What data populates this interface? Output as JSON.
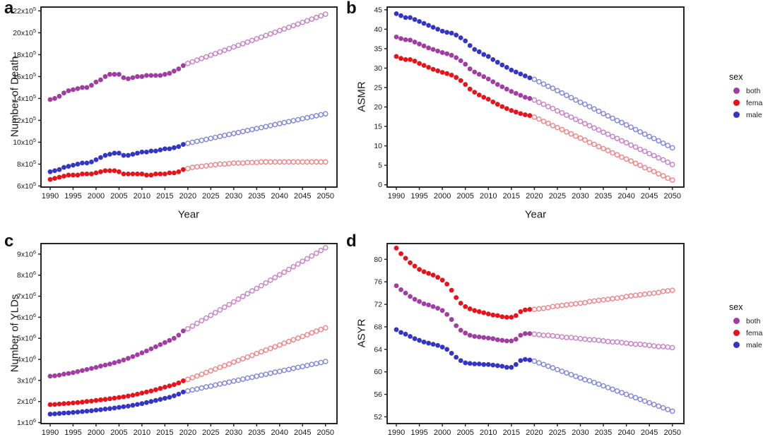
{
  "figure": {
    "panels": [
      {
        "letter": "a"
      },
      {
        "letter": "b"
      },
      {
        "letter": "c"
      },
      {
        "letter": "d"
      }
    ],
    "legend": {
      "title": "sex",
      "items": [
        {
          "label": "both",
          "color": "#A03DA3"
        },
        {
          "label": "female",
          "color": "#E8121A"
        },
        {
          "label": "male",
          "color": "#3435C4"
        }
      ]
    },
    "colors": {
      "frame": "#262626",
      "tick_text": "#1a1a1a",
      "background": "#ffffff"
    }
  },
  "chart_data": [
    {
      "panel": "a",
      "type": "scatter",
      "ylabel": "Number of Death",
      "xlabel": "Year",
      "x_range": [
        1990,
        2050,
        1
      ],
      "observed_through": 2019,
      "xlim": [
        1988,
        2052.5
      ],
      "ylim": [
        5.9,
        22.35
      ],
      "x_ticks": [
        1990,
        1995,
        2000,
        2005,
        2010,
        2015,
        2020,
        2025,
        2030,
        2035,
        2040,
        2045,
        2050
      ],
      "y_ticks": [
        6,
        8,
        10,
        12,
        14,
        16,
        18,
        20,
        22
      ],
      "y_tick_exponent": 5,
      "unit": "1e5",
      "grid": false,
      "series": [
        {
          "name": "both",
          "color": "#A03DA3",
          "light": "#C77FC8",
          "values": [
            13.9,
            14.0,
            14.2,
            14.5,
            14.7,
            14.8,
            14.9,
            15.0,
            15.0,
            15.2,
            15.5,
            15.7,
            16.0,
            16.2,
            16.2,
            16.2,
            15.9,
            15.8,
            15.9,
            16.0,
            16.0,
            16.1,
            16.1,
            16.1,
            16.1,
            16.2,
            16.3,
            16.5,
            16.7,
            17.0,
            17.2,
            17.35,
            17.5,
            17.65,
            17.8,
            17.95,
            18.1,
            18.25,
            18.4,
            18.55,
            18.7,
            18.85,
            19.0,
            19.15,
            19.3,
            19.45,
            19.6,
            19.75,
            19.9,
            20.05,
            20.2,
            20.35,
            20.5,
            20.65,
            20.8,
            20.95,
            21.1,
            21.25,
            21.4,
            21.55,
            21.7
          ]
        },
        {
          "name": "female",
          "color": "#E8121A",
          "light": "#F28387",
          "values": [
            6.6,
            6.7,
            6.8,
            6.9,
            7.0,
            7.0,
            7.0,
            7.1,
            7.1,
            7.1,
            7.2,
            7.3,
            7.4,
            7.4,
            7.4,
            7.3,
            7.1,
            7.1,
            7.1,
            7.1,
            7.1,
            7.0,
            7.0,
            7.1,
            7.1,
            7.1,
            7.2,
            7.2,
            7.3,
            7.5,
            7.6,
            7.7,
            7.75,
            7.8,
            7.85,
            7.9,
            7.95,
            8.0,
            8.0,
            8.05,
            8.1,
            8.1,
            8.1,
            8.15,
            8.15,
            8.15,
            8.2,
            8.2,
            8.2,
            8.2,
            8.2,
            8.2,
            8.2,
            8.2,
            8.2,
            8.2,
            8.2,
            8.2,
            8.2,
            8.2,
            8.2
          ]
        },
        {
          "name": "male",
          "color": "#3435C4",
          "light": "#8184DE",
          "values": [
            7.3,
            7.4,
            7.5,
            7.7,
            7.8,
            7.9,
            8.0,
            8.1,
            8.1,
            8.2,
            8.4,
            8.6,
            8.8,
            8.9,
            9.0,
            9.0,
            8.8,
            8.8,
            8.9,
            9.0,
            9.1,
            9.1,
            9.2,
            9.2,
            9.3,
            9.4,
            9.4,
            9.5,
            9.6,
            9.8,
            9.9,
            9.99,
            10.08,
            10.17,
            10.26,
            10.35,
            10.44,
            10.53,
            10.62,
            10.71,
            10.8,
            10.89,
            10.98,
            11.07,
            11.16,
            11.25,
            11.34,
            11.43,
            11.52,
            11.61,
            11.7,
            11.79,
            11.88,
            11.97,
            12.06,
            12.15,
            12.24,
            12.33,
            12.42,
            12.51,
            12.6
          ]
        }
      ]
    },
    {
      "panel": "b",
      "type": "scatter",
      "ylabel": "ASMR",
      "xlabel": "Year",
      "x_range": [
        1990,
        2050,
        1
      ],
      "observed_through": 2019,
      "xlim": [
        1988,
        2052.5
      ],
      "ylim": [
        -0.6,
        45.7
      ],
      "x_ticks": [
        1990,
        1995,
        2000,
        2005,
        2010,
        2015,
        2020,
        2025,
        2030,
        2035,
        2040,
        2045,
        2050
      ],
      "y_ticks": [
        0,
        5,
        10,
        15,
        20,
        25,
        30,
        35,
        40,
        45
      ],
      "y_tick_exponent": null,
      "unit": "1",
      "grid": false,
      "series": [
        {
          "name": "both",
          "color": "#A03DA3",
          "light": "#C77FC8",
          "values": [
            38,
            37.6,
            37.3,
            37.2,
            36.7,
            36.2,
            35.7,
            35.2,
            34.8,
            34.4,
            34,
            33.7,
            33.3,
            32.7,
            31.9,
            31,
            29.8,
            29,
            28.4,
            27.8,
            27.2,
            26.5,
            25.8,
            25.2,
            24.6,
            24,
            23.5,
            23,
            22.5,
            22.2,
            21.8,
            21.2,
            20.7,
            20.1,
            19.6,
            19.0,
            18.5,
            17.9,
            17.4,
            16.8,
            16.3,
            15.7,
            15.2,
            14.6,
            14.1,
            13.5,
            13.0,
            12.4,
            11.9,
            11.3,
            10.8,
            10.2,
            9.7,
            9.1,
            8.6,
            8.0,
            7.5,
            6.9,
            6.4,
            5.8,
            5.2
          ]
        },
        {
          "name": "female",
          "color": "#E8121A",
          "light": "#F28387",
          "values": [
            33,
            32.5,
            32.2,
            32.2,
            31.8,
            31.2,
            30.7,
            30.2,
            29.7,
            29.3,
            28.9,
            28.6,
            28.2,
            27.6,
            26.8,
            25.8,
            24.6,
            23.8,
            23.1,
            22.5,
            22,
            21.3,
            20.7,
            20.1,
            19.6,
            19.1,
            18.7,
            18.3,
            18,
            17.8,
            17.4,
            16.9,
            16.3,
            15.8,
            15.2,
            14.7,
            14.2,
            13.6,
            13.1,
            12.5,
            12.0,
            11.5,
            10.9,
            10.4,
            9.8,
            9.3,
            8.8,
            8.2,
            7.7,
            7.1,
            6.6,
            6.1,
            5.5,
            5.0,
            4.4,
            3.9,
            3.4,
            2.8,
            2.3,
            1.7,
            1.2
          ]
        },
        {
          "name": "male",
          "color": "#3435C4",
          "light": "#8184DE",
          "values": [
            44,
            43.5,
            43,
            43,
            42.5,
            42,
            41.5,
            41,
            40.5,
            40,
            39.5,
            39.2,
            39,
            38.5,
            37.8,
            37,
            35.8,
            34.8,
            34.2,
            33.5,
            33,
            32.2,
            31.5,
            30.8,
            30.2,
            29.5,
            29,
            28.5,
            28,
            27.5,
            27.1,
            26.5,
            25.9,
            25.3,
            24.8,
            24.2,
            23.6,
            23.0,
            22.4,
            21.8,
            21.2,
            20.7,
            20.1,
            19.5,
            18.9,
            18.3,
            17.7,
            17.1,
            16.5,
            16.0,
            15.4,
            14.8,
            14.2,
            13.6,
            13.0,
            12.4,
            11.9,
            11.3,
            10.7,
            10.1,
            9.5
          ]
        }
      ]
    },
    {
      "panel": "c",
      "type": "scatter",
      "ylabel": "Number of YLDs",
      "xlabel": "",
      "x_range": [
        1990,
        2050,
        1
      ],
      "observed_through": 2019,
      "xlim": [
        1988,
        2052.5
      ],
      "ylim": [
        0.95,
        9.5
      ],
      "x_ticks": [
        1990,
        1995,
        2000,
        2005,
        2010,
        2015,
        2020,
        2025,
        2030,
        2035,
        2040,
        2045,
        2050
      ],
      "y_ticks": [
        1,
        2,
        3,
        4,
        5,
        6,
        7,
        8,
        9
      ],
      "y_tick_exponent": 6,
      "unit": "1e6",
      "grid": false,
      "series": [
        {
          "name": "both",
          "color": "#A03DA3",
          "light": "#C77FC8",
          "values": [
            3.2,
            3.22,
            3.25,
            3.3,
            3.33,
            3.37,
            3.42,
            3.47,
            3.52,
            3.57,
            3.62,
            3.68,
            3.73,
            3.78,
            3.84,
            3.9,
            3.97,
            4.05,
            4.13,
            4.22,
            4.31,
            4.4,
            4.5,
            4.6,
            4.7,
            4.8,
            4.9,
            5.0,
            5.15,
            5.35,
            5.45,
            5.58,
            5.71,
            5.84,
            5.96,
            6.09,
            6.22,
            6.35,
            6.48,
            6.6,
            6.73,
            6.86,
            6.99,
            7.12,
            7.25,
            7.37,
            7.5,
            7.63,
            7.76,
            7.89,
            8.02,
            8.14,
            8.27,
            8.4,
            8.53,
            8.66,
            8.78,
            8.91,
            9.04,
            9.17,
            9.3
          ]
        },
        {
          "name": "female",
          "color": "#E8121A",
          "light": "#F28387",
          "values": [
            1.85,
            1.86,
            1.88,
            1.9,
            1.91,
            1.93,
            1.95,
            1.97,
            2.0,
            2.02,
            2.05,
            2.08,
            2.1,
            2.13,
            2.16,
            2.19,
            2.22,
            2.26,
            2.3,
            2.35,
            2.4,
            2.45,
            2.5,
            2.56,
            2.62,
            2.68,
            2.74,
            2.8,
            2.88,
            2.98,
            3.05,
            3.13,
            3.21,
            3.29,
            3.38,
            3.46,
            3.54,
            3.62,
            3.7,
            3.78,
            3.87,
            3.95,
            4.03,
            4.11,
            4.19,
            4.28,
            4.36,
            4.44,
            4.52,
            4.6,
            4.68,
            4.77,
            4.85,
            4.93,
            5.01,
            5.09,
            5.17,
            5.26,
            5.34,
            5.42,
            5.5
          ]
        },
        {
          "name": "male",
          "color": "#3435C4",
          "light": "#8184DE",
          "values": [
            1.4,
            1.41,
            1.43,
            1.45,
            1.46,
            1.48,
            1.5,
            1.52,
            1.54,
            1.56,
            1.59,
            1.61,
            1.64,
            1.66,
            1.69,
            1.72,
            1.75,
            1.78,
            1.82,
            1.86,
            1.9,
            1.95,
            2.0,
            2.05,
            2.1,
            2.15,
            2.2,
            2.27,
            2.35,
            2.45,
            2.5,
            2.55,
            2.59,
            2.64,
            2.69,
            2.73,
            2.78,
            2.83,
            2.87,
            2.92,
            2.97,
            3.01,
            3.06,
            3.11,
            3.15,
            3.2,
            3.25,
            3.29,
            3.34,
            3.39,
            3.43,
            3.48,
            3.52,
            3.57,
            3.62,
            3.66,
            3.71,
            3.76,
            3.8,
            3.85,
            3.9
          ]
        }
      ]
    },
    {
      "panel": "d",
      "type": "scatter",
      "ylabel": "ASYR",
      "xlabel": "",
      "x_range": [
        1990,
        2050,
        1
      ],
      "observed_through": 2019,
      "xlim": [
        1988,
        2052.5
      ],
      "ylim": [
        50.8,
        82.8
      ],
      "x_ticks": [
        1990,
        1995,
        2000,
        2005,
        2010,
        2015,
        2020,
        2025,
        2030,
        2035,
        2040,
        2045,
        2050
      ],
      "y_ticks": [
        52,
        56,
        60,
        64,
        68,
        72,
        76,
        80
      ],
      "y_tick_exponent": null,
      "unit": "1",
      "grid": false,
      "series": [
        {
          "name": "both",
          "color": "#A03DA3",
          "light": "#C77FC8",
          "values": [
            75.3,
            74.6,
            74.0,
            73.4,
            72.9,
            72.5,
            72.1,
            71.9,
            71.6,
            71.3,
            70.9,
            70.2,
            69.3,
            68.2,
            67.4,
            66.9,
            66.5,
            66.3,
            66.2,
            66.1,
            66.0,
            65.9,
            65.7,
            65.6,
            65.5,
            65.5,
            65.8,
            66.5,
            66.8,
            66.8,
            66.7,
            66.6,
            66.5,
            66.5,
            66.4,
            66.3,
            66.2,
            66.1,
            66.1,
            66.0,
            65.9,
            65.8,
            65.7,
            65.7,
            65.6,
            65.5,
            65.4,
            65.3,
            65.3,
            65.2,
            65.1,
            65.0,
            64.9,
            64.9,
            64.8,
            64.7,
            64.6,
            64.5,
            64.5,
            64.4,
            64.3
          ]
        },
        {
          "name": "female",
          "color": "#E8121A",
          "light": "#F28387",
          "values": [
            82,
            81,
            80.2,
            79.4,
            78.8,
            78.2,
            77.8,
            77.5,
            77.2,
            76.8,
            76.3,
            75.6,
            74.5,
            73.2,
            72.2,
            71.6,
            71.2,
            70.9,
            70.7,
            70.5,
            70.3,
            70.1,
            70.0,
            69.8,
            69.7,
            69.7,
            70.0,
            70.7,
            71.0,
            71.1,
            71.1,
            71.2,
            71.3,
            71.4,
            71.6,
            71.7,
            71.8,
            71.9,
            72.0,
            72.1,
            72.2,
            72.3,
            72.5,
            72.6,
            72.7,
            72.8,
            72.9,
            73.0,
            73.1,
            73.2,
            73.4,
            73.5,
            73.6,
            73.7,
            73.8,
            73.9,
            74.0,
            74.1,
            74.3,
            74.4,
            74.5
          ]
        },
        {
          "name": "male",
          "color": "#3435C4",
          "light": "#8184DE",
          "values": [
            67.5,
            67.0,
            66.7,
            66.3,
            65.9,
            65.6,
            65.3,
            65.1,
            64.9,
            64.7,
            64.4,
            64.0,
            63.3,
            62.6,
            62.0,
            61.6,
            61.5,
            61.4,
            61.4,
            61.3,
            61.3,
            61.2,
            61.1,
            61.0,
            60.8,
            60.8,
            61.3,
            62.0,
            62.2,
            62.1,
            61.9,
            61.6,
            61.3,
            61.0,
            60.7,
            60.4,
            60.1,
            59.8,
            59.5,
            59.2,
            58.9,
            58.6,
            58.4,
            58.1,
            57.8,
            57.5,
            57.2,
            56.9,
            56.6,
            56.3,
            56.0,
            55.7,
            55.4,
            55.1,
            54.8,
            54.5,
            54.2,
            53.9,
            53.6,
            53.3,
            53.0
          ]
        }
      ]
    }
  ]
}
